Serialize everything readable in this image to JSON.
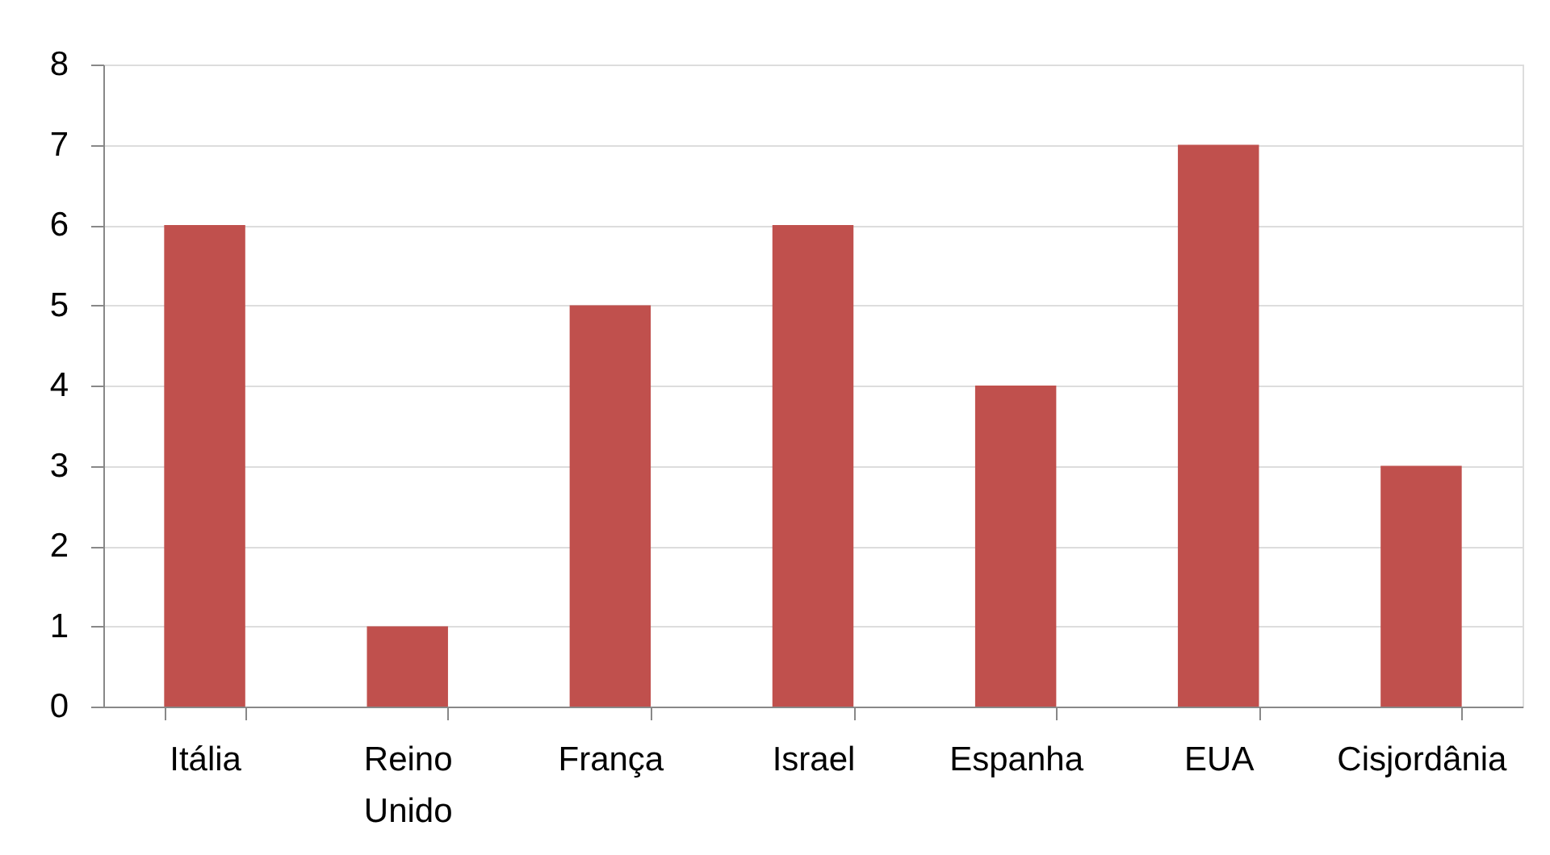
{
  "chart_data": {
    "type": "bar",
    "categories": [
      "Itália",
      "Reino Unido",
      "França",
      "Israel",
      "Espanha",
      "EUA",
      "Cisjordânia"
    ],
    "values": [
      6,
      1,
      5,
      6,
      4,
      7,
      3
    ],
    "color": "#c0504d",
    "ylim": [
      0,
      8
    ],
    "yticks": [
      0,
      1,
      2,
      3,
      4,
      5,
      6,
      7,
      8
    ],
    "grid": "y"
  }
}
